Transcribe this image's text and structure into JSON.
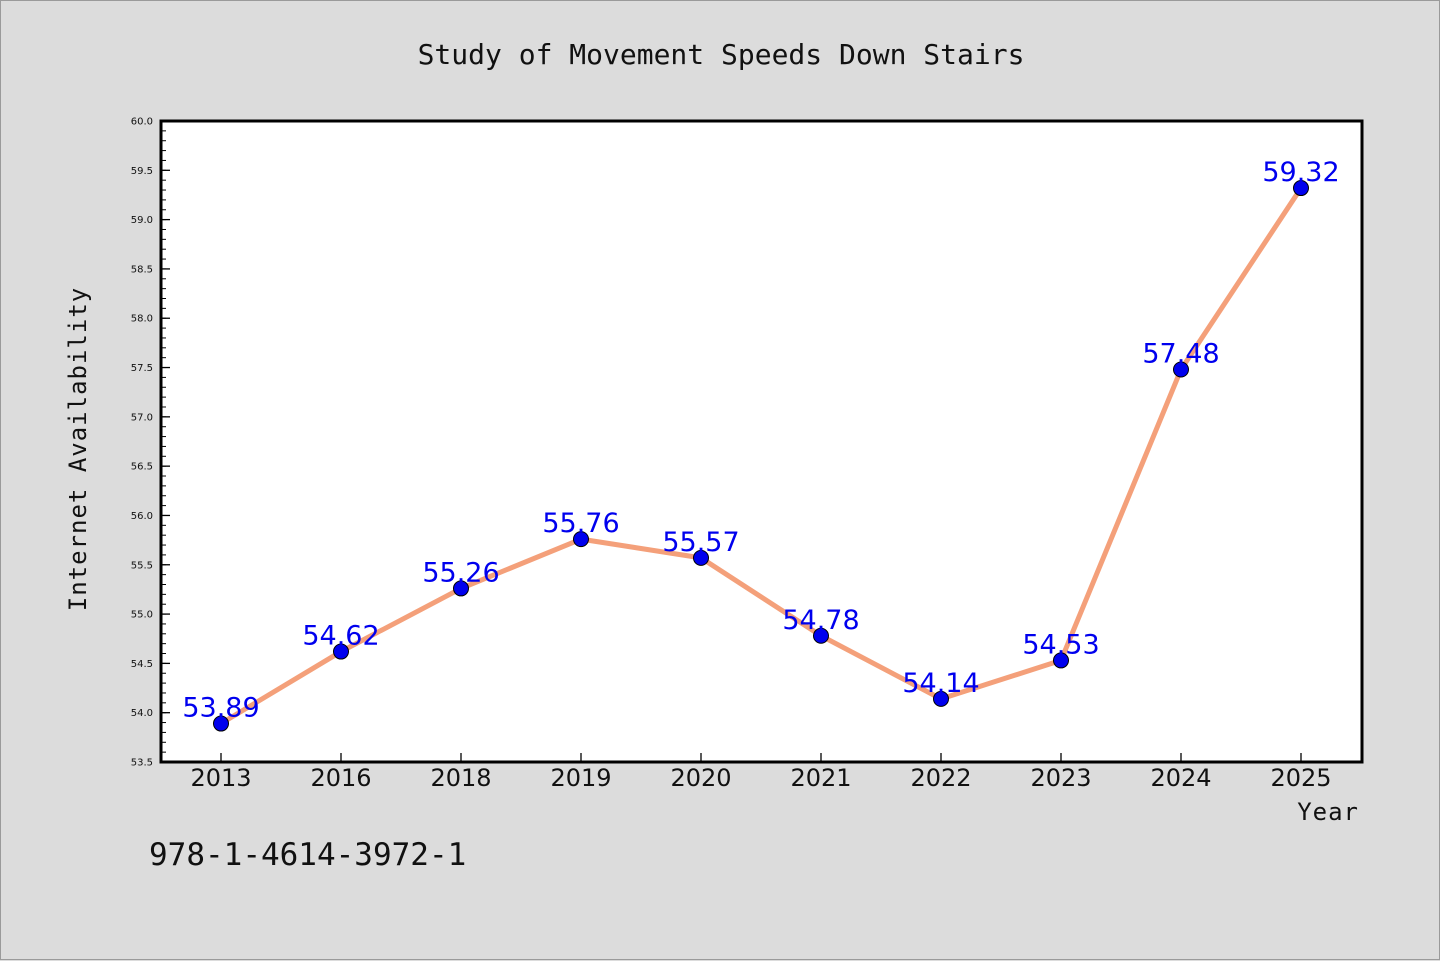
{
  "chart_data": {
    "type": "line",
    "title": "Study of Movement Speeds Down Stairs",
    "xlabel": "Year",
    "ylabel": "Internet Availability",
    "categories": [
      "2013",
      "2016",
      "2018",
      "2019",
      "2020",
      "2021",
      "2022",
      "2023",
      "2024",
      "2025"
    ],
    "series": [
      {
        "values": [
          53.89,
          54.62,
          55.26,
          55.76,
          55.57,
          54.78,
          54.14,
          54.53,
          57.48,
          59.32
        ],
        "labels": [
          "53.89",
          "54.62",
          "55.26",
          "55.76",
          "55.57",
          "54.78",
          "54.14",
          "54.53",
          "57.48",
          "59.32"
        ]
      }
    ],
    "ylim": [
      53.5,
      60.0
    ],
    "yticks": [
      "53.5",
      "54.0",
      "54.5",
      "55.0",
      "55.5",
      "56.0",
      "56.5",
      "57.0",
      "57.5",
      "58.0",
      "58.5",
      "59.0",
      "59.5",
      "60.0"
    ],
    "grid": false,
    "line_color": "#f4a07a",
    "marker_color": "#0000ee",
    "label_color": "#0000ee"
  },
  "footnote": "978-1-4614-3972-1"
}
